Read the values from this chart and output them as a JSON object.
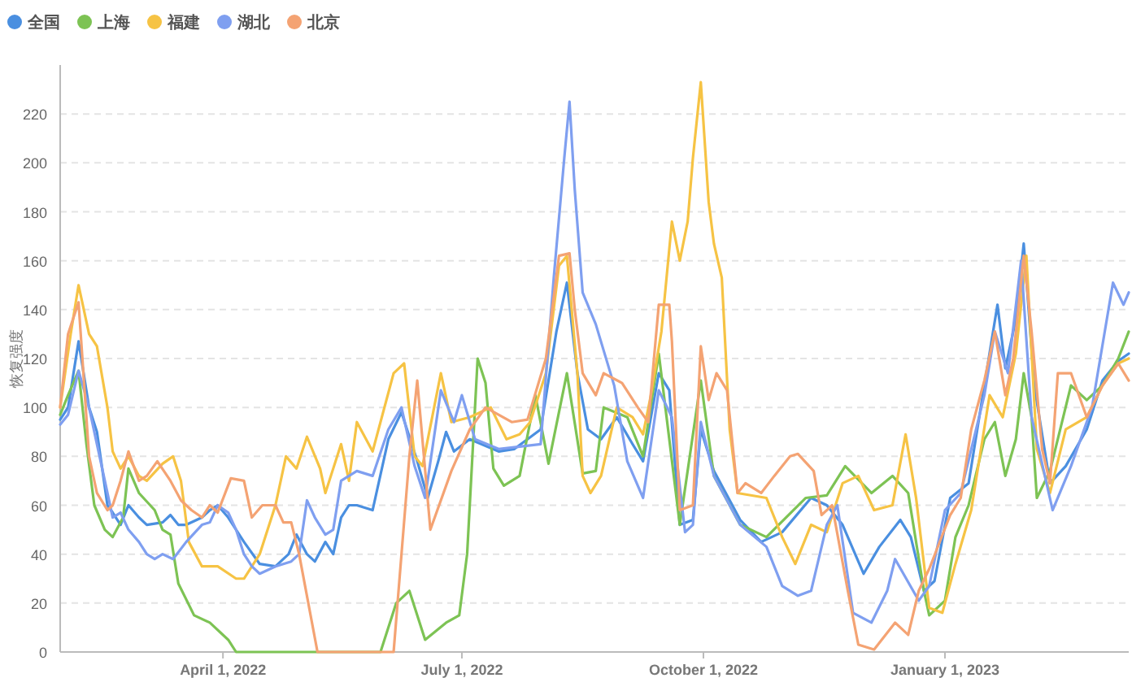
{
  "chart_data": {
    "type": "line",
    "ylabel": "恢复强度",
    "xlim": [
      "2022-01-29",
      "2023-03-12"
    ],
    "ylim": [
      0,
      240
    ],
    "xticks": [
      {
        "value": "2022-04-01",
        "label": "April 1, 2022"
      },
      {
        "value": "2022-07-01",
        "label": "July 1, 2022"
      },
      {
        "value": "2022-10-01",
        "label": "October 1, 2022"
      },
      {
        "value": "2023-01-01",
        "label": "January 1, 2023"
      }
    ],
    "yticks": [
      0,
      20,
      40,
      60,
      80,
      100,
      120,
      140,
      160,
      180,
      200,
      220
    ],
    "grid": "y",
    "legend": "top left",
    "marker": "none",
    "line_style": "solid",
    "series": [
      {
        "name": "全国",
        "color": "#4a8fe0",
        "x": [
          "2022-01-29",
          "2022-02-01",
          "2022-02-05",
          "2022-02-09",
          "2022-02-12",
          "2022-02-16",
          "2022-02-18",
          "2022-02-21",
          "2022-02-24",
          "2022-02-28",
          "2022-03-03",
          "2022-03-09",
          "2022-03-12",
          "2022-03-15",
          "2022-03-18",
          "2022-03-24",
          "2022-03-27",
          "2022-03-30",
          "2022-04-03",
          "2022-04-09",
          "2022-04-15",
          "2022-04-21",
          "2022-04-26",
          "2022-04-29",
          "2022-05-03",
          "2022-05-06",
          "2022-05-10",
          "2022-05-13",
          "2022-05-16",
          "2022-05-19",
          "2022-05-22",
          "2022-05-28",
          "2022-06-03",
          "2022-06-08",
          "2022-06-14",
          "2022-06-18",
          "2022-06-22",
          "2022-06-25",
          "2022-06-28",
          "2022-07-04",
          "2022-07-15",
          "2022-07-21",
          "2022-07-31",
          "2022-08-06",
          "2022-08-10",
          "2022-08-14",
          "2022-08-18",
          "2022-08-23",
          "2022-08-29",
          "2022-09-04",
          "2022-09-08",
          "2022-09-14",
          "2022-09-18",
          "2022-09-22",
          "2022-09-27",
          "2022-09-30",
          "2022-10-05",
          "2022-10-15",
          "2022-10-23",
          "2022-10-31",
          "2022-11-11",
          "2022-11-17",
          "2022-11-23",
          "2022-12-01",
          "2022-12-07",
          "2022-12-15",
          "2022-12-19",
          "2022-12-24",
          "2022-12-28",
          "2023-01-03",
          "2023-01-10",
          "2023-01-16",
          "2023-01-21",
          "2023-01-24",
          "2023-01-28",
          "2023-01-31",
          "2023-02-04",
          "2023-02-10",
          "2023-02-16",
          "2023-02-24",
          "2023-03-02",
          "2023-03-08",
          "2023-03-12"
        ],
        "values": [
          95,
          100,
          127,
          100,
          90,
          60,
          57,
          52,
          60,
          55,
          52,
          53,
          56,
          52,
          52,
          55,
          58,
          60,
          55,
          45,
          36,
          35,
          40,
          48,
          40,
          37,
          45,
          40,
          55,
          60,
          60,
          58,
          87,
          98,
          78,
          63,
          78,
          90,
          82,
          87,
          82,
          83,
          91,
          131,
          151,
          114,
          91,
          87,
          96,
          85,
          78,
          114,
          107,
          52,
          54,
          91,
          74,
          54,
          45,
          49,
          63,
          60,
          52,
          32,
          43,
          54,
          47,
          25,
          29,
          63,
          69,
          109,
          142,
          116,
          136,
          167,
          109,
          69,
          76,
          91,
          111,
          119,
          122
        ]
      },
      {
        "name": "上海",
        "color": "#7dc354",
        "x": [
          "2022-01-29",
          "2022-02-01",
          "2022-02-05",
          "2022-02-08",
          "2022-02-11",
          "2022-02-15",
          "2022-02-18",
          "2022-02-22",
          "2022-02-24",
          "2022-02-28",
          "2022-03-06",
          "2022-03-09",
          "2022-03-12",
          "2022-03-15",
          "2022-03-21",
          "2022-03-27",
          "2022-04-03",
          "2022-04-06",
          "2022-05-31",
          "2022-06-06",
          "2022-06-11",
          "2022-06-17",
          "2022-06-25",
          "2022-06-30",
          "2022-07-03",
          "2022-07-07",
          "2022-07-10",
          "2022-07-13",
          "2022-07-17",
          "2022-07-23",
          "2022-07-29",
          "2022-08-03",
          "2022-08-10",
          "2022-08-16",
          "2022-08-21",
          "2022-08-24",
          "2022-09-02",
          "2022-09-08",
          "2022-09-14",
          "2022-09-22",
          "2022-09-30",
          "2022-10-05",
          "2022-10-15",
          "2022-10-25",
          "2022-11-09",
          "2022-11-17",
          "2022-11-24",
          "2022-12-04",
          "2022-12-12",
          "2022-12-18",
          "2022-12-24",
          "2022-12-26",
          "2023-01-01",
          "2023-01-05",
          "2023-01-10",
          "2023-01-16",
          "2023-01-20",
          "2023-01-24",
          "2023-01-28",
          "2023-01-31",
          "2023-02-03",
          "2023-02-05",
          "2023-02-10",
          "2023-02-18",
          "2023-02-24",
          "2023-03-02",
          "2023-03-08",
          "2023-03-12"
        ],
        "values": [
          97,
          105,
          115,
          85,
          60,
          50,
          47,
          55,
          75,
          65,
          58,
          50,
          48,
          28,
          15,
          12,
          5,
          0,
          0,
          20,
          25,
          5,
          12,
          15,
          40,
          120,
          110,
          75,
          68,
          72,
          105,
          77,
          114,
          73,
          74,
          100,
          96,
          80,
          122,
          52,
          111,
          72,
          52,
          47,
          63,
          64,
          76,
          65,
          72,
          65,
          25,
          15,
          21,
          47,
          60,
          87,
          94,
          72,
          87,
          114,
          96,
          63,
          74,
          109,
          103,
          109,
          120,
          131
        ]
      },
      {
        "name": "福建",
        "color": "#f6c344",
        "x": [
          "2022-01-29",
          "2022-02-02",
          "2022-02-05",
          "2022-02-09",
          "2022-02-12",
          "2022-02-16",
          "2022-02-18",
          "2022-02-21",
          "2022-02-24",
          "2022-02-28",
          "2022-03-03",
          "2022-03-09",
          "2022-03-13",
          "2022-03-16",
          "2022-03-19",
          "2022-03-24",
          "2022-03-30",
          "2022-04-06",
          "2022-04-09",
          "2022-04-15",
          "2022-04-21",
          "2022-04-25",
          "2022-04-29",
          "2022-05-03",
          "2022-05-08",
          "2022-05-10",
          "2022-05-13",
          "2022-05-16",
          "2022-05-19",
          "2022-05-22",
          "2022-05-28",
          "2022-06-05",
          "2022-06-09",
          "2022-06-13",
          "2022-06-16",
          "2022-06-23",
          "2022-06-27",
          "2022-07-04",
          "2022-07-12",
          "2022-07-18",
          "2022-07-23",
          "2022-07-27",
          "2022-08-02",
          "2022-08-07",
          "2022-08-10",
          "2022-08-14",
          "2022-08-16",
          "2022-08-19",
          "2022-08-23",
          "2022-08-29",
          "2022-09-04",
          "2022-09-08",
          "2022-09-11",
          "2022-09-15",
          "2022-09-19",
          "2022-09-22",
          "2022-09-25",
          "2022-09-27",
          "2022-09-30",
          "2022-10-03",
          "2022-10-05",
          "2022-10-08",
          "2022-10-11",
          "2022-10-14",
          "2022-10-25",
          "2022-10-31",
          "2022-11-05",
          "2022-11-11",
          "2022-11-17",
          "2022-11-23",
          "2022-11-29",
          "2022-12-05",
          "2022-12-12",
          "2022-12-17",
          "2022-12-21",
          "2022-12-26",
          "2022-12-31",
          "2023-01-05",
          "2023-01-11",
          "2023-01-18",
          "2023-01-23",
          "2023-01-28",
          "2023-02-01",
          "2023-02-05",
          "2023-02-10",
          "2023-02-16",
          "2023-02-24",
          "2023-03-02",
          "2023-03-08",
          "2023-03-12"
        ],
        "values": [
          100,
          130,
          150,
          130,
          125,
          100,
          82,
          75,
          80,
          72,
          70,
          77,
          80,
          70,
          45,
          35,
          35,
          30,
          30,
          40,
          60,
          80,
          75,
          88,
          75,
          65,
          75,
          85,
          70,
          94,
          82,
          114,
          118,
          80,
          76,
          114,
          94,
          96,
          100,
          87,
          89,
          94,
          114,
          158,
          162,
          114,
          72,
          65,
          72,
          100,
          96,
          89,
          105,
          131,
          176,
          160,
          176,
          202,
          233,
          184,
          167,
          153,
          91,
          65,
          63,
          47,
          36,
          52,
          49,
          69,
          72,
          58,
          60,
          89,
          63,
          18,
          16,
          36,
          58,
          105,
          96,
          122,
          162,
          83,
          65,
          91,
          96,
          109,
          118,
          120
        ]
      },
      {
        "name": "湖北",
        "color": "#7f9ff0",
        "x": [
          "2022-01-29",
          "2022-02-01",
          "2022-02-05",
          "2022-02-09",
          "2022-02-12",
          "2022-02-16",
          "2022-02-18",
          "2022-02-21",
          "2022-02-24",
          "2022-02-28",
          "2022-03-03",
          "2022-03-06",
          "2022-03-09",
          "2022-03-13",
          "2022-03-18",
          "2022-03-24",
          "2022-03-27",
          "2022-03-30",
          "2022-04-03",
          "2022-04-06",
          "2022-04-09",
          "2022-04-12",
          "2022-04-15",
          "2022-04-21",
          "2022-04-27",
          "2022-04-30",
          "2022-05-03",
          "2022-05-06",
          "2022-05-10",
          "2022-05-13",
          "2022-05-16",
          "2022-05-19",
          "2022-05-22",
          "2022-05-28",
          "2022-06-03",
          "2022-06-08",
          "2022-06-13",
          "2022-06-17",
          "2022-06-23",
          "2022-06-28",
          "2022-07-01",
          "2022-07-06",
          "2022-07-15",
          "2022-07-23",
          "2022-07-31",
          "2022-08-05",
          "2022-08-09",
          "2022-08-11",
          "2022-08-13",
          "2022-08-16",
          "2022-08-21",
          "2022-08-28",
          "2022-09-02",
          "2022-09-08",
          "2022-09-14",
          "2022-09-19",
          "2022-09-24",
          "2022-09-27",
          "2022-09-30",
          "2022-10-05",
          "2022-10-15",
          "2022-10-25",
          "2022-10-31",
          "2022-11-06",
          "2022-11-11",
          "2022-11-17",
          "2022-11-21",
          "2022-11-27",
          "2022-12-04",
          "2022-12-10",
          "2022-12-13",
          "2022-12-22",
          "2022-12-26",
          "2023-01-01",
          "2023-01-07",
          "2023-01-16",
          "2023-01-20",
          "2023-01-25",
          "2023-01-30",
          "2023-02-03",
          "2023-02-11",
          "2023-02-18",
          "2023-02-26",
          "2023-03-06",
          "2023-03-10",
          "2023-03-12"
        ],
        "values": [
          93,
          97,
          115,
          100,
          85,
          65,
          55,
          57,
          50,
          45,
          40,
          38,
          40,
          38,
          45,
          52,
          53,
          60,
          57,
          50,
          40,
          35,
          32,
          35,
          37,
          40,
          62,
          55,
          48,
          50,
          70,
          72,
          74,
          72,
          91,
          100,
          76,
          63,
          107,
          94,
          105,
          87,
          83,
          84,
          85,
          153,
          202,
          225,
          189,
          147,
          134,
          109,
          78,
          63,
          107,
          96,
          49,
          52,
          94,
          72,
          52,
          43,
          27,
          23,
          25,
          52,
          60,
          16,
          12,
          25,
          38,
          21,
          27,
          58,
          65,
          105,
          131,
          114,
          160,
          96,
          58,
          76,
          100,
          151,
          142,
          147
        ]
      },
      {
        "name": "北京",
        "color": "#f4a373",
        "x": [
          "2022-01-29",
          "2022-02-01",
          "2022-02-05",
          "2022-02-09",
          "2022-02-12",
          "2022-02-16",
          "2022-02-18",
          "2022-02-21",
          "2022-02-24",
          "2022-02-28",
          "2022-03-03",
          "2022-03-07",
          "2022-03-12",
          "2022-03-16",
          "2022-03-20",
          "2022-03-24",
          "2022-03-27",
          "2022-03-30",
          "2022-04-04",
          "2022-04-09",
          "2022-04-12",
          "2022-04-16",
          "2022-04-21",
          "2022-04-24",
          "2022-04-27",
          "2022-04-30",
          "2022-05-07",
          "2022-06-05",
          "2022-06-11",
          "2022-06-14",
          "2022-06-19",
          "2022-06-27",
          "2022-07-04",
          "2022-07-10",
          "2022-07-20",
          "2022-07-26",
          "2022-08-02",
          "2022-08-07",
          "2022-08-11",
          "2022-08-13",
          "2022-08-16",
          "2022-08-21",
          "2022-08-24",
          "2022-08-31",
          "2022-09-06",
          "2022-09-10",
          "2022-09-14",
          "2022-09-18",
          "2022-09-19",
          "2022-09-22",
          "2022-09-27",
          "2022-09-30",
          "2022-10-03",
          "2022-10-06",
          "2022-10-10",
          "2022-10-14",
          "2022-10-17",
          "2022-10-23",
          "2022-10-28",
          "2022-11-03",
          "2022-11-06",
          "2022-11-12",
          "2022-11-15",
          "2022-11-19",
          "2022-11-25",
          "2022-11-29",
          "2022-12-05",
          "2022-12-13",
          "2022-12-18",
          "2022-12-22",
          "2022-12-26",
          "2023-01-03",
          "2023-01-07",
          "2023-01-11",
          "2023-01-16",
          "2023-01-20",
          "2023-01-24",
          "2023-01-27",
          "2023-01-31",
          "2023-02-03",
          "2023-02-07",
          "2023-02-10",
          "2023-02-13",
          "2023-02-18",
          "2023-02-24",
          "2023-03-02",
          "2023-03-08",
          "2023-03-12"
        ],
        "values": [
          100,
          130,
          143,
          80,
          65,
          58,
          60,
          70,
          82,
          70,
          72,
          78,
          70,
          62,
          58,
          55,
          60,
          57,
          71,
          70,
          55,
          60,
          60,
          53,
          53,
          40,
          0,
          0,
          80,
          111,
          50,
          74,
          91,
          100,
          94,
          95,
          120,
          162,
          163,
          140,
          114,
          105,
          114,
          110,
          100,
          94,
          142,
          142,
          127,
          58,
          60,
          125,
          103,
          114,
          107,
          65,
          69,
          65,
          72,
          80,
          81,
          74,
          56,
          60,
          25,
          3,
          1,
          12,
          7,
          25,
          34,
          56,
          63,
          91,
          111,
          131,
          105,
          120,
          162,
          131,
          83,
          69,
          114,
          114,
          96,
          109,
          118,
          111
        ]
      }
    ]
  }
}
